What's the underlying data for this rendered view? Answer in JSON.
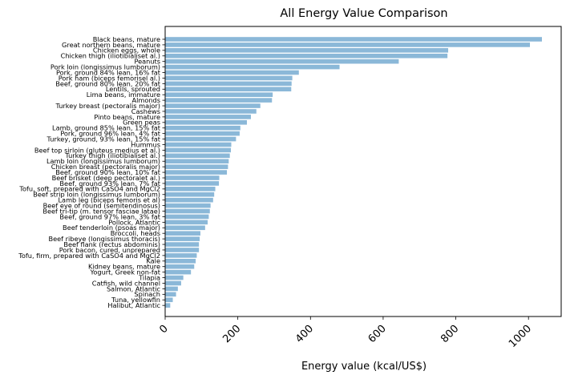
{
  "chart_data": {
    "type": "bar",
    "orientation": "horizontal",
    "title": "All Energy Value Comparison",
    "xlabel": "Energy value (kcal/US$)",
    "ylabel": "",
    "xlim": [
      0,
      1090
    ],
    "xticks": [
      0,
      200,
      400,
      600,
      800,
      1000
    ],
    "grid": false,
    "bar_color": "#8bb8d8",
    "categories": [
      "Black beans, mature",
      "Great northern beans, mature",
      "Chicken eggs, whole",
      "Chicken thigh (iliotibialiset al.)",
      "Peanuts",
      "Pork loin (longissimus lumborum)",
      "Pork, ground 84% lean, 16% fat",
      "Pork ham (biceps femorisel al.)",
      "Beef, ground 80% lean, 20% fat",
      "Lentils, sprouted",
      "Lima beans, immature",
      "Almonds",
      "Turkey breast (pectoralis major)",
      "Cashews",
      "Pinto beans, mature",
      "Green peas",
      "Lamb, ground 85% lean, 15% fat",
      "Pork, ground 96% lean, 4% fat",
      "Turkey, ground, 93% lean, 15% fat",
      "Hummus",
      "Beef top sirloin (gluteus medius et al.)",
      "Turkey thigh (iliotibialiset al.)",
      "Lamb loin (longissimus lumborum)",
      "Chicken breast (pectoralis major)",
      "Beef, ground 90% lean, 10% fat",
      "Beef brisket (deep pectoralet al.)",
      "Beef, ground 93% lean, 7% fat",
      "Tofu, soft, prepared with CaSO4 and MgCl2",
      "Beef strip loin (longissimus lumborum)",
      "Lamb leg (biceps femoris et al)",
      "Beef eye of round (semitendinosus)",
      "Beef tri-tip (m. tensor fasciae latae)",
      "Beef, ground 97% lean, 3% fat",
      "Pollock, Atlantic",
      "Beef tenderloin (psoas major)",
      "Broccoli, heads",
      "Beef ribeye (longissimus thoracis)",
      "Beef flank (rectus abdominis)",
      "Pork bacon, cured, unprepared",
      "Tofu, firm, prepared with CaSO4 and MgCl2",
      "Kale",
      "Kidney beans, mature",
      "Yogurt, Greek non-fat",
      "Tilapia",
      "Catfish, wild channel",
      "Salmon, Atlantic",
      "Spinach",
      "Tuna, yellowfin",
      "Halibut, Atlantic"
    ],
    "values": [
      1037,
      1004,
      779,
      777,
      643,
      480,
      368,
      350,
      348,
      347,
      296,
      294,
      262,
      251,
      236,
      225,
      207,
      205,
      195,
      182,
      181,
      178,
      175,
      173,
      170,
      149,
      148,
      138,
      135,
      132,
      125,
      123,
      120,
      117,
      110,
      97,
      95,
      93,
      93,
      87,
      84,
      80,
      71,
      50,
      44,
      35,
      30,
      21,
      14
    ]
  }
}
